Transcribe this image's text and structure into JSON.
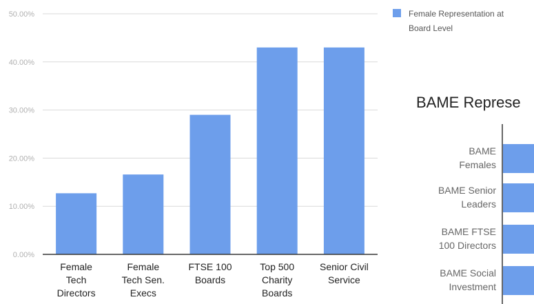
{
  "chart_data": [
    {
      "type": "bar",
      "categories": [
        [
          "Female",
          "Tech",
          "Directors"
        ],
        [
          "Female",
          "Tech Sen.",
          "Execs"
        ],
        [
          "FTSE 100",
          "Boards"
        ],
        [
          "Top 500",
          "Charity",
          "Boards"
        ],
        [
          "Senior Civil",
          "Service"
        ]
      ],
      "values": [
        12.7,
        16.6,
        29.0,
        43.0,
        43.0
      ],
      "ylim": [
        0,
        50
      ],
      "yticks": [
        "0.00%",
        "10.00%",
        "20.00%",
        "30.00%",
        "40.00%",
        "50.00%"
      ],
      "grid": true,
      "legend_position": "right",
      "series": [
        {
          "name": "Female Representation at Board Level",
          "color": "#6d9eeb"
        }
      ]
    },
    {
      "type": "bar",
      "orientation": "horizontal",
      "title": "BAME Represe",
      "categories": [
        [
          "BAME",
          "Females"
        ],
        [
          "BAME Senior",
          "Leaders"
        ],
        [
          "BAME FTSE",
          "100 Directors"
        ],
        [
          "BAME Social",
          "Investment"
        ]
      ],
      "color": "#6d9eeb",
      "note": "bars are cut off at the right edge of the image; values not visible"
    }
  ],
  "legend": {
    "line1": "Female Representation at",
    "line2": "Board Level"
  }
}
